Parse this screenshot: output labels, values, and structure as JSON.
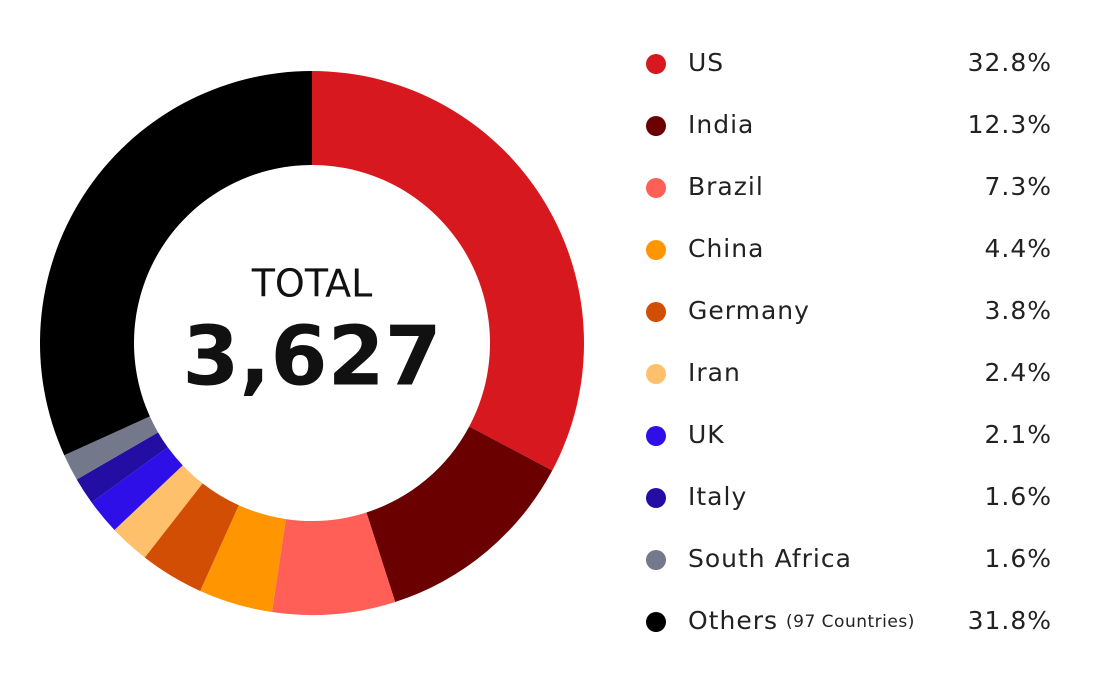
{
  "chart_data": {
    "type": "donut",
    "total_title": "TOTAL",
    "total": {
      "value": 3627,
      "label": "3,627"
    },
    "categories": [
      "US",
      "India",
      "Brazil",
      "China",
      "Germany",
      "Iran",
      "UK",
      "Italy",
      "South Africa",
      "Others"
    ],
    "category_note": {
      "category": "Others",
      "text": "(97 Countries)"
    },
    "values": [
      32.8,
      12.3,
      7.3,
      4.4,
      3.8,
      2.4,
      2.1,
      1.6,
      1.6,
      31.8
    ],
    "value_labels": [
      "32.8%",
      "12.3%",
      "7.3%",
      "4.4%",
      "3.8%",
      "2.4%",
      "2.1%",
      "1.6%",
      "1.6%",
      "31.8%"
    ],
    "colors": [
      "#d7191f",
      "#6b0000",
      "#ff5f57",
      "#ff9500",
      "#d24e05",
      "#ffc06b",
      "#2e0fe8",
      "#230da3",
      "#73798a",
      "#000000"
    ],
    "legend": "right"
  }
}
